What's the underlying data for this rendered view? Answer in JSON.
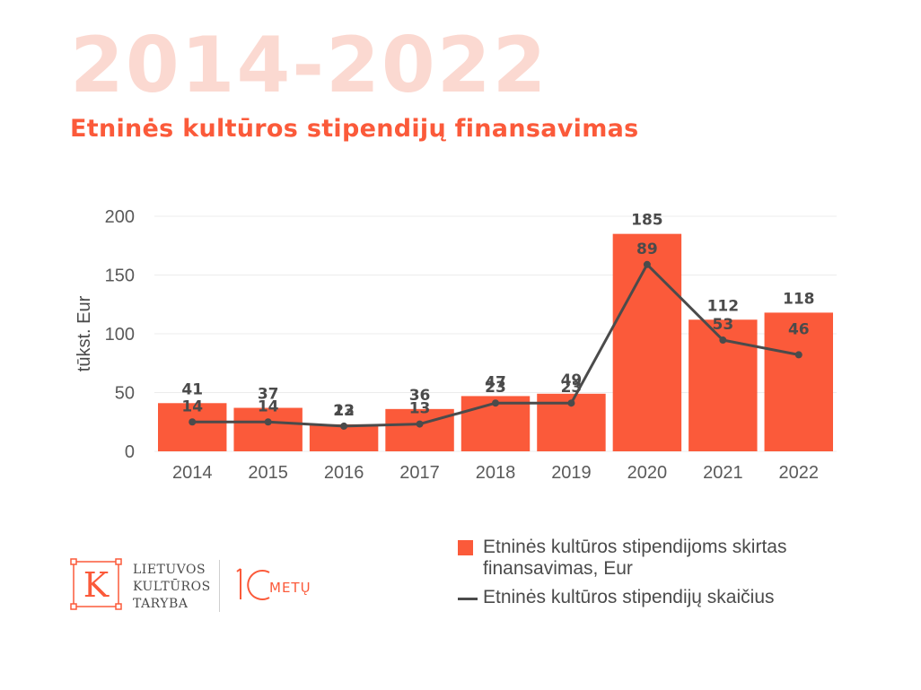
{
  "header": {
    "year_range": "2014-2022",
    "subtitle": "Etninės kultūros stipendijų finansavimas"
  },
  "chart_data": {
    "type": "bar",
    "categories": [
      "2014",
      "2015",
      "2016",
      "2017",
      "2018",
      "2019",
      "2020",
      "2021",
      "2022"
    ],
    "ylabel": "tūkst. Eur",
    "ylim": [
      0,
      200
    ],
    "yticks": [
      0,
      50,
      100,
      150,
      200
    ],
    "grid": true,
    "legend_position": "bottom-right",
    "series": [
      {
        "name": "Etninės kultūros stipendijoms skirtas finansavimas, Eur",
        "type": "bar",
        "color": "#fb5a3a",
        "values": [
          41,
          37,
          23,
          36,
          47,
          49,
          185,
          112,
          118
        ]
      },
      {
        "name": "Etninės kultūros stipendijų skaičius",
        "type": "line",
        "color": "#4b4b4b",
        "values": [
          14,
          14,
          12,
          13,
          23,
          23,
          89,
          53,
          46
        ]
      }
    ]
  },
  "footer": {
    "logo_letter": "K",
    "org_lines": [
      "LIETUVOS",
      "KULTŪROS",
      "TARYBA"
    ],
    "anniversary_text": "METŲ"
  }
}
